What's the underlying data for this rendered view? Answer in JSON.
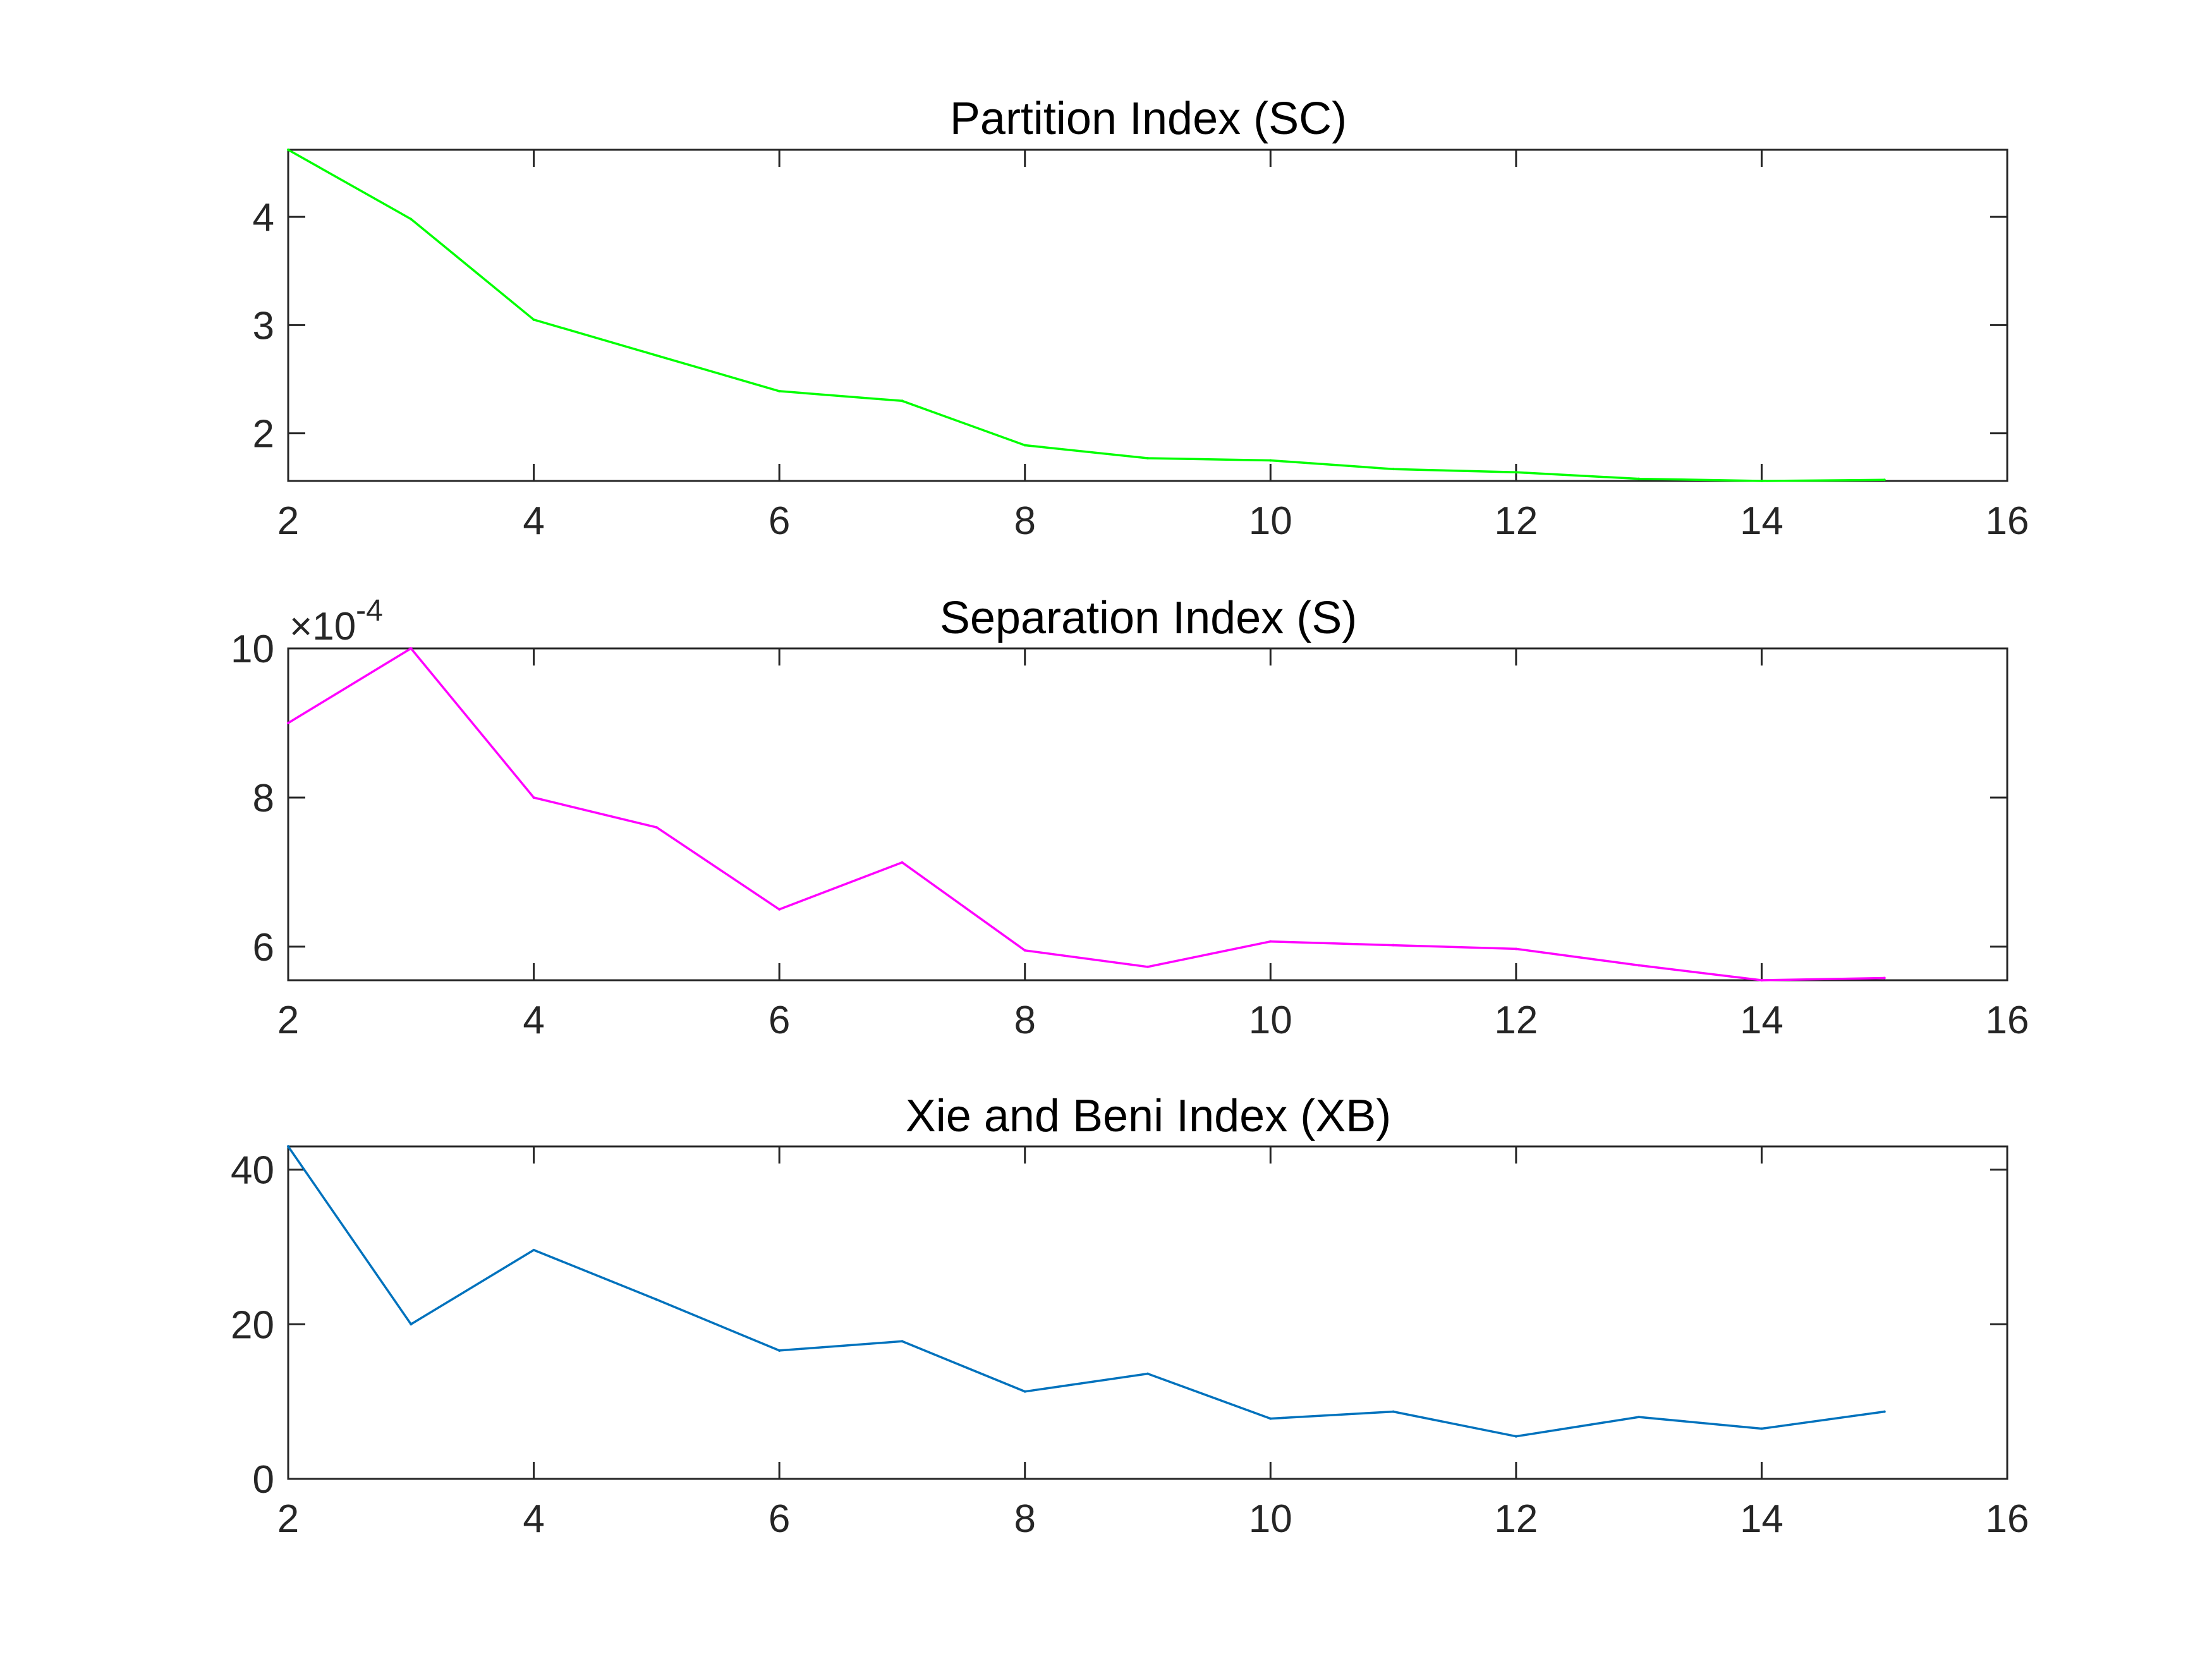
{
  "chart_data": [
    {
      "type": "line",
      "title": "Partition Index (SC)",
      "xlabel": "",
      "ylabel": "",
      "x": [
        2,
        3,
        4,
        5,
        6,
        7,
        8,
        9,
        10,
        11,
        12,
        13,
        14,
        15
      ],
      "values": [
        4.62,
        3.98,
        3.05,
        2.72,
        2.39,
        2.3,
        1.89,
        1.77,
        1.75,
        1.67,
        1.64,
        1.58,
        1.56,
        1.57
      ],
      "xlim": [
        2,
        16
      ],
      "ylim": [
        1.56,
        4.62
      ],
      "xticks": [
        "2",
        "4",
        "6",
        "8",
        "10",
        "12",
        "14",
        "16"
      ],
      "yticks": [
        "2",
        "3",
        "4"
      ],
      "color": "#00ff00",
      "grid": false
    },
    {
      "type": "line",
      "title": "Separation Index (S)",
      "xlabel": "",
      "ylabel": "",
      "y_exponent": "-4",
      "x": [
        2,
        3,
        4,
        5,
        6,
        7,
        8,
        9,
        10,
        11,
        12,
        13,
        14,
        15
      ],
      "values": [
        9.0,
        10.0,
        8.0,
        7.6,
        6.5,
        7.13,
        5.95,
        5.73,
        6.07,
        6.02,
        5.97,
        5.75,
        5.55,
        5.58
      ],
      "xlim": [
        2,
        16
      ],
      "ylim": [
        5.55,
        10
      ],
      "xticks": [
        "2",
        "4",
        "6",
        "8",
        "10",
        "12",
        "14",
        "16"
      ],
      "yticks": [
        "6",
        "8",
        "10"
      ],
      "color": "#ff00ff",
      "grid": false
    },
    {
      "type": "line",
      "title": "Xie and Beni Index (XB)",
      "xlabel": "",
      "ylabel": "",
      "x": [
        2,
        3,
        4,
        5,
        6,
        7,
        8,
        9,
        10,
        11,
        12,
        13,
        14,
        15
      ],
      "values": [
        43,
        20,
        29.6,
        23.2,
        16.6,
        17.8,
        11.3,
        13.6,
        7.8,
        8.7,
        5.5,
        8.0,
        6.5,
        8.7
      ],
      "xlim": [
        2,
        16
      ],
      "ylim": [
        0,
        43
      ],
      "xticks": [
        "2",
        "4",
        "6",
        "8",
        "10",
        "12",
        "14",
        "16"
      ],
      "yticks": [
        "0",
        "20",
        "40"
      ],
      "color": "#0072bd",
      "grid": false
    }
  ]
}
